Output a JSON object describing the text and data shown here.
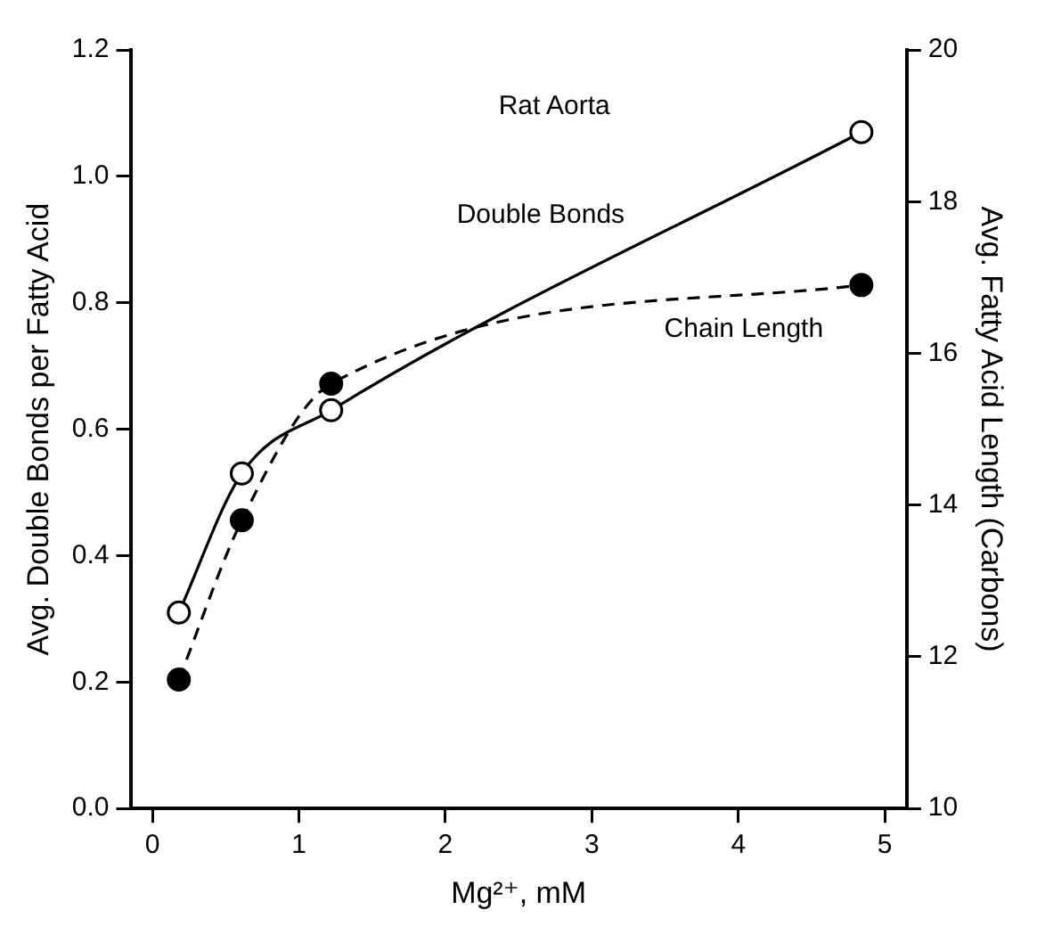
{
  "chart_data": {
    "type": "line",
    "xlabel": "Mg²⁺, mM",
    "ylabel": "Avg. Double Bonds per Fatty Acid",
    "y2label": "Avg. Fatty Acid Length (Carbons)",
    "annotations": [
      "Rat Aorta"
    ],
    "xlim": [
      -0.15,
      5.15
    ],
    "xticks": [
      0,
      1,
      2,
      3,
      4,
      5
    ],
    "ylim": [
      0,
      1.2
    ],
    "yticks": [
      {
        "value": 0,
        "label": "0.0"
      },
      0.2,
      0.4,
      0.6,
      0.8,
      {
        "value": 1,
        "label": "1.0"
      },
      1.2
    ],
    "y2lim": [
      10,
      20
    ],
    "y2ticks": [
      10,
      12,
      14,
      16,
      18,
      20
    ],
    "grid": false,
    "legend": false,
    "marker": "circle",
    "series": [
      {
        "name": "Double Bonds",
        "color": "#000000",
        "line_style": "solid",
        "x": [
          0.18,
          0.61,
          1.22,
          4.84
        ],
        "values": [
          0.31,
          0.53,
          0.63,
          1.07
        ]
      },
      {
        "name": "Chain Length",
        "color": "#000000",
        "line_style": "dashed",
        "axis": "y2",
        "x": [
          0.18,
          0.61,
          1.22,
          4.84
        ],
        "values": [
          11.7,
          13.8,
          15.6,
          16.9
        ]
      }
    ]
  }
}
